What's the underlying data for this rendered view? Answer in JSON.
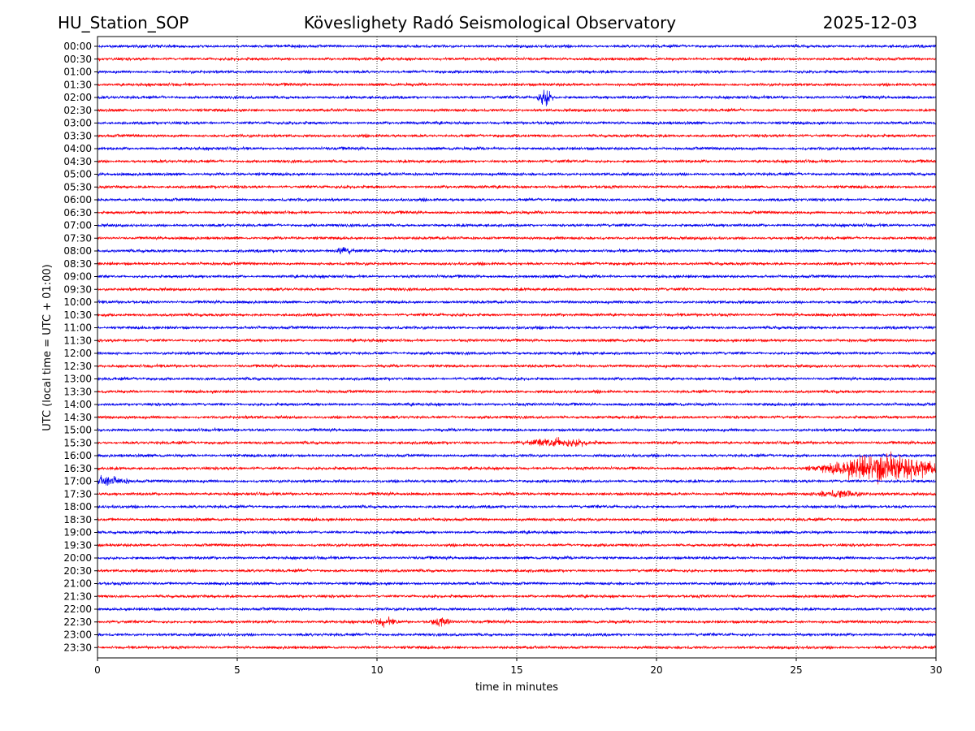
{
  "header": {
    "station": "HU_Station_SOP",
    "observatory": "Köveslighety Radó Seismological Observatory",
    "date": "2025-12-03"
  },
  "chart_data": {
    "type": "line",
    "title": "Köveslighety Radó Seismological Observatory",
    "xlabel": "time in minutes",
    "ylabel": "UTC (local time = UTC + 01:00)",
    "xlim": [
      0,
      30
    ],
    "x_ticks": [
      "0",
      "5",
      "10",
      "15",
      "20",
      "25",
      "30"
    ],
    "x_tick_values": [
      0,
      5,
      10,
      15,
      20,
      25,
      30
    ],
    "x_gridlines": [
      5,
      10,
      15,
      20,
      25
    ],
    "grid": "vertical dotted",
    "trace_colors": [
      "#0000ee",
      "#ff0000"
    ],
    "rows": [
      "00:00",
      "00:30",
      "01:00",
      "01:30",
      "02:00",
      "02:30",
      "03:00",
      "03:30",
      "04:00",
      "04:30",
      "05:00",
      "05:30",
      "06:00",
      "06:30",
      "07:00",
      "07:30",
      "08:00",
      "08:30",
      "09:00",
      "09:30",
      "10:00",
      "10:30",
      "11:00",
      "11:30",
      "12:00",
      "12:30",
      "13:00",
      "13:30",
      "14:00",
      "14:30",
      "15:00",
      "15:30",
      "16:00",
      "16:30",
      "17:00",
      "17:30",
      "18:00",
      "18:30",
      "19:00",
      "19:30",
      "20:00",
      "20:30",
      "21:00",
      "21:30",
      "22:00",
      "22:30",
      "23:00",
      "23:30"
    ],
    "events": [
      {
        "row": "02:00",
        "minute": 16.0,
        "amplitude": 3.0,
        "width_minutes": 0.3
      },
      {
        "row": "16:30",
        "minute": 28.2,
        "amplitude": 5.0,
        "width_minutes": 2.5
      },
      {
        "row": "17:00",
        "minute": 0.3,
        "amplitude": 1.6,
        "width_minutes": 1.0
      },
      {
        "row": "17:30",
        "minute": 26.5,
        "amplitude": 1.3,
        "width_minutes": 1.0
      },
      {
        "row": "15:30",
        "minute": 16.5,
        "amplitude": 1.2,
        "width_minutes": 1.5
      },
      {
        "row": "22:30",
        "minute": 12.3,
        "amplitude": 1.3,
        "width_minutes": 0.5
      },
      {
        "row": "22:30",
        "minute": 10.3,
        "amplitude": 1.2,
        "width_minutes": 0.5
      },
      {
        "row": "08:00",
        "minute": 8.8,
        "amplitude": 1.2,
        "width_minutes": 0.5
      }
    ]
  }
}
